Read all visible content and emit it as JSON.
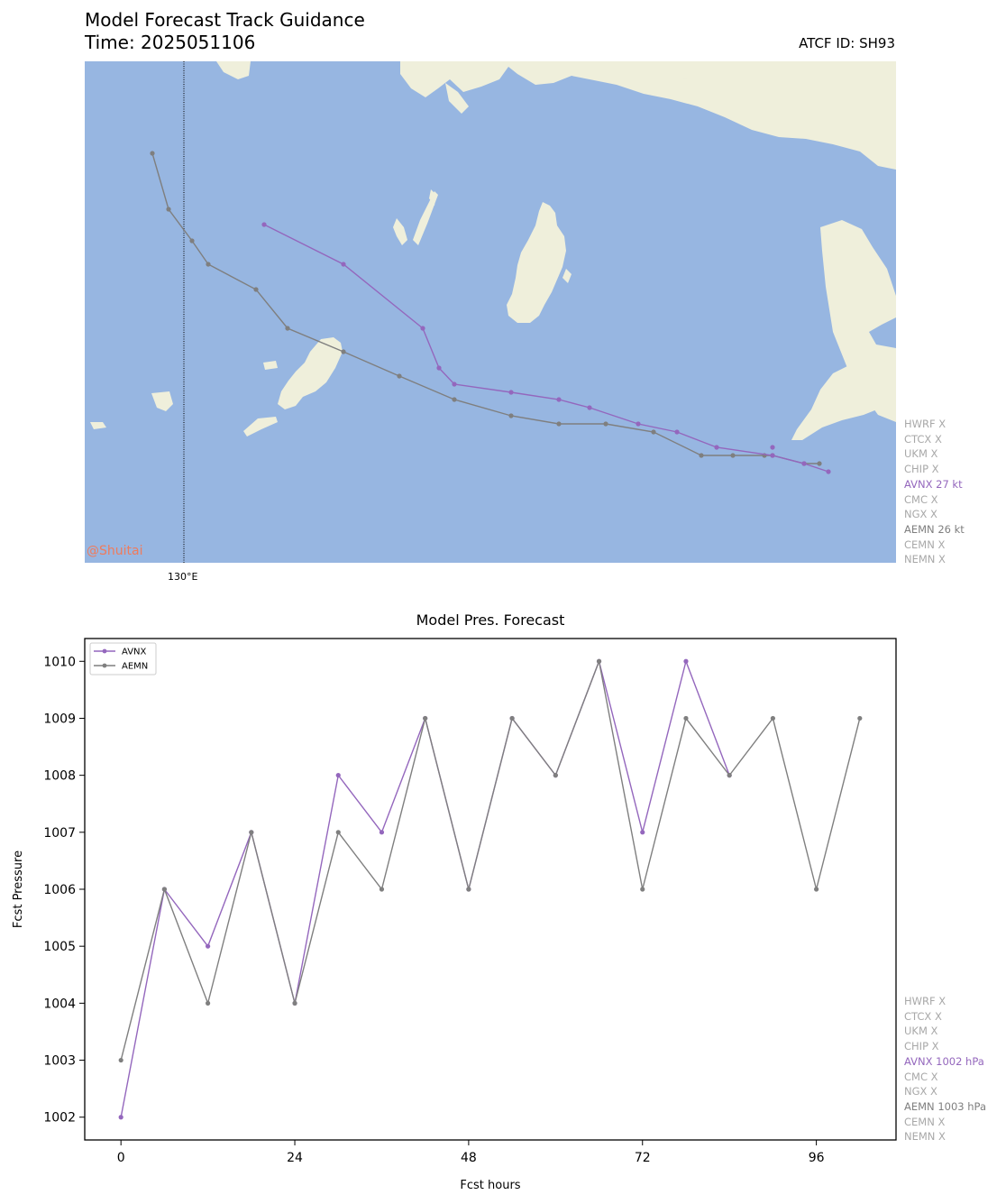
{
  "header": {
    "title": "Model Forecast Track Guidance",
    "time_label": "Time: 2025051106",
    "atcf_id": "ATCF ID: SH93"
  },
  "map": {
    "lon_label": "130°E",
    "watermark": "@Shuitai",
    "colors": {
      "ocean": "#97b6e1",
      "land": "#efefdb",
      "avnx": "#9467bd",
      "aemn": "#7f7f7f",
      "inactive": "#a8a8a8"
    }
  },
  "track_legend": [
    {
      "text": "HWRF X",
      "active": false
    },
    {
      "text": "CTCX X",
      "active": false
    },
    {
      "text": "UKM X",
      "active": false
    },
    {
      "text": "CHIP X",
      "active": false
    },
    {
      "text": "AVNX 27 kt",
      "active": true,
      "color": "#9467bd"
    },
    {
      "text": "CMC X",
      "active": false
    },
    {
      "text": "NGX X",
      "active": false
    },
    {
      "text": "AEMN 26 kt",
      "active": true,
      "color": "#7f7f7f"
    },
    {
      "text": "CEMN X",
      "active": false
    },
    {
      "text": "NEMN X",
      "active": false
    }
  ],
  "pressure_legend": [
    {
      "text": "HWRF X",
      "active": false
    },
    {
      "text": "CTCX X",
      "active": false
    },
    {
      "text": "UKM X",
      "active": false
    },
    {
      "text": "CHIP X",
      "active": false
    },
    {
      "text": "AVNX 1002 hPa",
      "active": true,
      "color": "#9467bd"
    },
    {
      "text": "CMC X",
      "active": false
    },
    {
      "text": "NGX X",
      "active": false
    },
    {
      "text": "AEMN 1003 hPa",
      "active": true,
      "color": "#7f7f7f"
    },
    {
      "text": "CEMN X",
      "active": false
    },
    {
      "text": "NEMN X",
      "active": false
    }
  ],
  "chart_data": {
    "type": "line",
    "title": "Model Pres. Forecast",
    "xlabel": "Fcst hours",
    "ylabel": "Fcst Pressure",
    "xticks": [
      0,
      24,
      48,
      72,
      96
    ],
    "yticks": [
      1002,
      1003,
      1004,
      1005,
      1006,
      1007,
      1008,
      1009,
      1010
    ],
    "xlim": [
      -5,
      107
    ],
    "ylim": [
      1001.6,
      1010.4
    ],
    "legend_position": "top-left",
    "series": [
      {
        "name": "AVNX",
        "color": "#9467bd",
        "x": [
          0,
          6,
          12,
          18,
          24,
          30,
          36,
          42,
          48,
          54,
          60,
          66,
          72,
          78,
          84
        ],
        "values": [
          1002,
          1006,
          1005,
          1007,
          1004,
          1008,
          1007,
          1009,
          1006,
          1009,
          1008,
          1010,
          1007,
          1010,
          1008
        ]
      },
      {
        "name": "AEMN",
        "color": "#7f7f7f",
        "x": [
          0,
          6,
          12,
          18,
          24,
          30,
          36,
          42,
          48,
          54,
          60,
          66,
          72,
          78,
          84,
          90,
          96,
          102
        ],
        "values": [
          1003,
          1006,
          1004,
          1007,
          1004,
          1007,
          1006,
          1009,
          1006,
          1009,
          1008,
          1010,
          1006,
          1009,
          1008,
          1009,
          1006,
          1009
        ]
      }
    ]
  }
}
